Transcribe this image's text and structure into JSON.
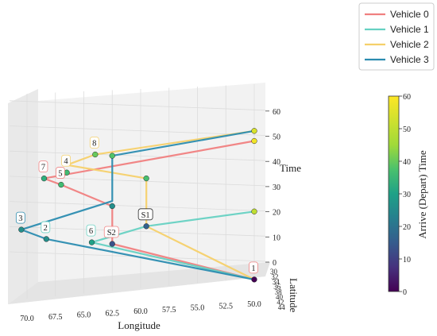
{
  "chart_data": {
    "type": "line",
    "projection": "3d",
    "xlabel": "Longitude",
    "ylabel": "Latitude",
    "zlabel": "Time",
    "xlim": [
      71,
      49
    ],
    "zlim": [
      -5,
      62
    ],
    "x_ticks": [
      "70.0",
      "67.5",
      "65.0",
      "62.5",
      "60.0",
      "57.5",
      "55.0",
      "52.5",
      "50.0"
    ],
    "z_ticks": [
      "0",
      "10",
      "20",
      "30",
      "40",
      "50",
      "60"
    ],
    "y_ticks": [
      "30",
      "32",
      "34",
      "36",
      "38",
      "40",
      "42",
      "44"
    ],
    "grid": true,
    "legend_position": "top-right",
    "series": [
      {
        "name": "Vehicle 0",
        "color": "#f08080",
        "x": [
          50,
          62.5,
          62.5,
          67,
          68.5,
          50
        ],
        "z": [
          -5,
          5,
          20,
          27,
          29,
          50
        ]
      },
      {
        "name": "Vehicle 1",
        "color": "#66d1c2",
        "x": [
          50,
          64.3,
          59.5,
          50
        ],
        "z": [
          -5,
          5,
          13,
          22
        ]
      },
      {
        "name": "Vehicle 2",
        "color": "#f5d06a",
        "x": [
          50,
          59.5,
          59.5,
          66.5,
          64,
          50
        ],
        "z": [
          -5,
          13,
          32,
          35,
          40,
          54
        ]
      },
      {
        "name": "Vehicle 3",
        "color": "#2b8cb0",
        "x": [
          50,
          68.3,
          70.5,
          62.5,
          62.5,
          50
        ],
        "z": [
          -5,
          5,
          8,
          22,
          40,
          54
        ]
      }
    ],
    "nodes": [
      {
        "label": "1",
        "x": 50.0,
        "z": -5,
        "t": 0,
        "edge": "#f08080"
      },
      {
        "label": "2",
        "x": 68.3,
        "z": 5,
        "t": 26,
        "edge": "#66d1c2"
      },
      {
        "label": "3",
        "x": 70.5,
        "z": 8,
        "t": 26,
        "edge": "#2b8cb0"
      },
      {
        "label": "4",
        "x": 66.5,
        "z": 32,
        "t": 36,
        "edge": "#f5d06a"
      },
      {
        "label": "5",
        "x": 67.0,
        "z": 27,
        "t": 36,
        "edge": "#f08080"
      },
      {
        "label": "6",
        "x": 64.3,
        "z": 5,
        "t": 30,
        "edge": "#66d1c2"
      },
      {
        "label": "7",
        "x": 68.5,
        "z": 29,
        "t": 33,
        "edge": "#f08080"
      },
      {
        "label": "8",
        "x": 64.0,
        "z": 40,
        "t": 40,
        "edge": "#f5d06a"
      },
      {
        "label": "S1",
        "x": 59.5,
        "z": 13,
        "t": 16,
        "edge": "#222222"
      },
      {
        "label": "S2",
        "x": 62.5,
        "z": 5,
        "t": 13,
        "edge": "#f08080"
      }
    ],
    "extra_points": [
      {
        "x": 62.5,
        "z": 20,
        "t": 26
      },
      {
        "x": 62.5,
        "z": 40,
        "t": 38
      },
      {
        "x": 59.5,
        "z": 32,
        "t": 37
      },
      {
        "x": 50.0,
        "z": 22,
        "t": 50
      },
      {
        "x": 50.0,
        "z": 50,
        "t": 58
      },
      {
        "x": 50.0,
        "z": 54,
        "t": 54
      }
    ],
    "colorbar": {
      "label": "Arrive (Depart) Time",
      "min": 0,
      "max": 60,
      "ticks": [
        "0",
        "10",
        "20",
        "30",
        "40",
        "50",
        "60"
      ]
    }
  }
}
